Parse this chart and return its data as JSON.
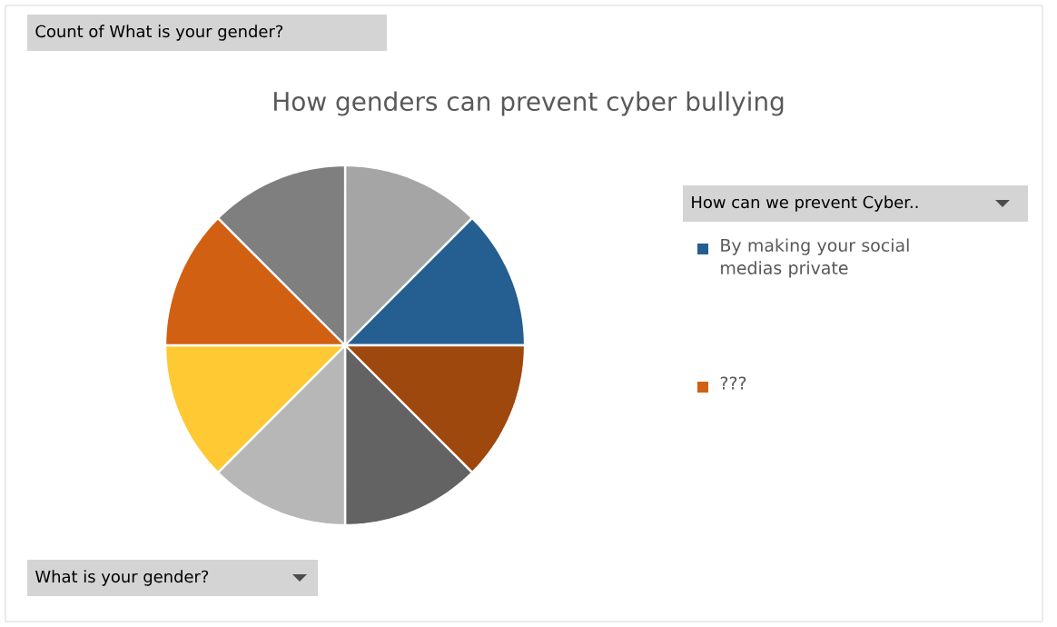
{
  "chart_data": {
    "type": "pie",
    "title": "How genders can prevent cyber bullying",
    "legend_title": "How can we prevent Cyber..",
    "legend": "right",
    "categories": [
      null,
      "By making your social medias private",
      null,
      null,
      null,
      null,
      "???",
      null
    ],
    "values": [
      12.5,
      12.5,
      12.5,
      12.5,
      12.5,
      12.5,
      12.5,
      12.5
    ],
    "colors": [
      "#a5a5a5",
      "#255e91",
      "#9e480e",
      "#636363",
      "#b7b7b7",
      "#ffc933",
      "#d26012",
      "#7f7f7f"
    ],
    "annotations": [
      "Count of What is your gender?",
      "What is your gender?"
    ]
  }
}
